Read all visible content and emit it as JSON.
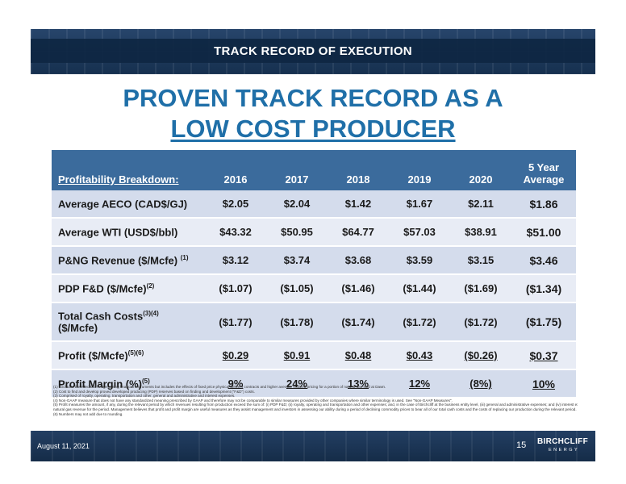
{
  "banner": {
    "title": "TRACK RECORD OF EXECUTION"
  },
  "headline": {
    "line1": "PROVEN TRACK RECORD AS A",
    "line2": "LOW COST PRODUCER"
  },
  "table": {
    "header_label": "Profitability Breakdown:",
    "years": [
      "2016",
      "2017",
      "2018",
      "2019",
      "2020"
    ],
    "avg_header": [
      "5 Year",
      "Average"
    ],
    "rows": [
      {
        "label": "Average AECO (CAD$/GJ)",
        "sup": "",
        "label2": "",
        "values": [
          "$2.05",
          "$2.04",
          "$1.42",
          "$1.67",
          "$2.11"
        ],
        "avg": "$1.86"
      },
      {
        "label": "Average WTI (USD$/bbl)",
        "sup": "",
        "label2": "",
        "values": [
          "$43.32",
          "$50.95",
          "$64.77",
          "$57.03",
          "$38.91"
        ],
        "avg": "$51.00"
      },
      {
        "label": "P&NG Revenue ($/Mcfe) ",
        "sup": "(1)",
        "label2": "",
        "values": [
          "$3.12",
          "$3.74",
          "$3.68",
          "$3.59",
          "$3.15"
        ],
        "avg": "$3.46"
      },
      {
        "label": "PDP F&D ($/Mcfe)",
        "sup": "(2)",
        "label2": "",
        "values": [
          "($1.07)",
          "($1.05)",
          "($1.46)",
          "($1.44)",
          "($1.69)"
        ],
        "avg": "($1.34)"
      },
      {
        "label": "Total Cash Costs",
        "sup": "(3)(4)",
        "label2": "($/Mcfe)",
        "values": [
          "($1.77)",
          "($1.78)",
          "($1.74)",
          "($1.72)",
          "($1.72)"
        ],
        "avg": "($1.75)"
      },
      {
        "label": "Profit ($/Mcfe)",
        "sup": "(5)(6)",
        "label2": "",
        "values": [
          "$0.29",
          "$0.91",
          "$0.48",
          "$0.43",
          "($0.26)"
        ],
        "avg": "$0.37"
      },
      {
        "label": "Profit Margin (%)",
        "sup": "(5)",
        "label2": "",
        "values": [
          "9%",
          "24%",
          "13%",
          "12%",
          "(8%)"
        ],
        "avg": "10%"
      }
    ]
  },
  "footnotes": [
    "(1) Excludes the effects of hedges using financial instruments but includes the effects of fixed price physical delivery contracts and higher average realized pricing for a portion of natural gas sold at Dawn.",
    "(2) Cost to find and develop proved developed producing (PDP) reserves based on finding and development (\"F&D\") costs.",
    "(3) Comprised of royalty, operating, transportation and other, general and administrative and interest expenses.",
    "(4) Non-GAAP measure that does not have any standardized meaning prescribed by GAAP and therefore may not be comparable to similar measures provided by other companies where similar terminology is used. See \"Non-GAAP Measures\".",
    "(5) Profit measures the amount, if any, during the relevant period by which revenues resulting from production exceed the sum of: (i) PDP F&D; (ii) royalty, operating and transportation and other expenses; and, in the case of Birchcliff at the business entity level, (iii) general and administrative expenses; and (iv) interest expense. This measure is not intended to represent net income or net income to common shareholders as presented in accordance with IFRS. Profit margin is calculated by dividing profit before non-cash items for the period by petroleum and",
    "natural gas revenue for the period. Management believes that profit and profit margin are useful measures as they assist management and investors in assessing our ability during a period of declining commodity prices to bear all of our total cash costs and the costs of replacing our production during the relevant period.",
    "(6) Numbers may not add due to rounding."
  ],
  "footer": {
    "date": "August 11, 2021",
    "page": "15",
    "logo_main": "BIRCHCLIFF",
    "logo_sub": "ENERGY"
  },
  "colors": {
    "banner": "#1f3a5c",
    "headline": "#1f6fa8",
    "table_header": "#3b6b9c",
    "row_odd": "#d4dcec",
    "row_even": "#e8ecf5"
  }
}
